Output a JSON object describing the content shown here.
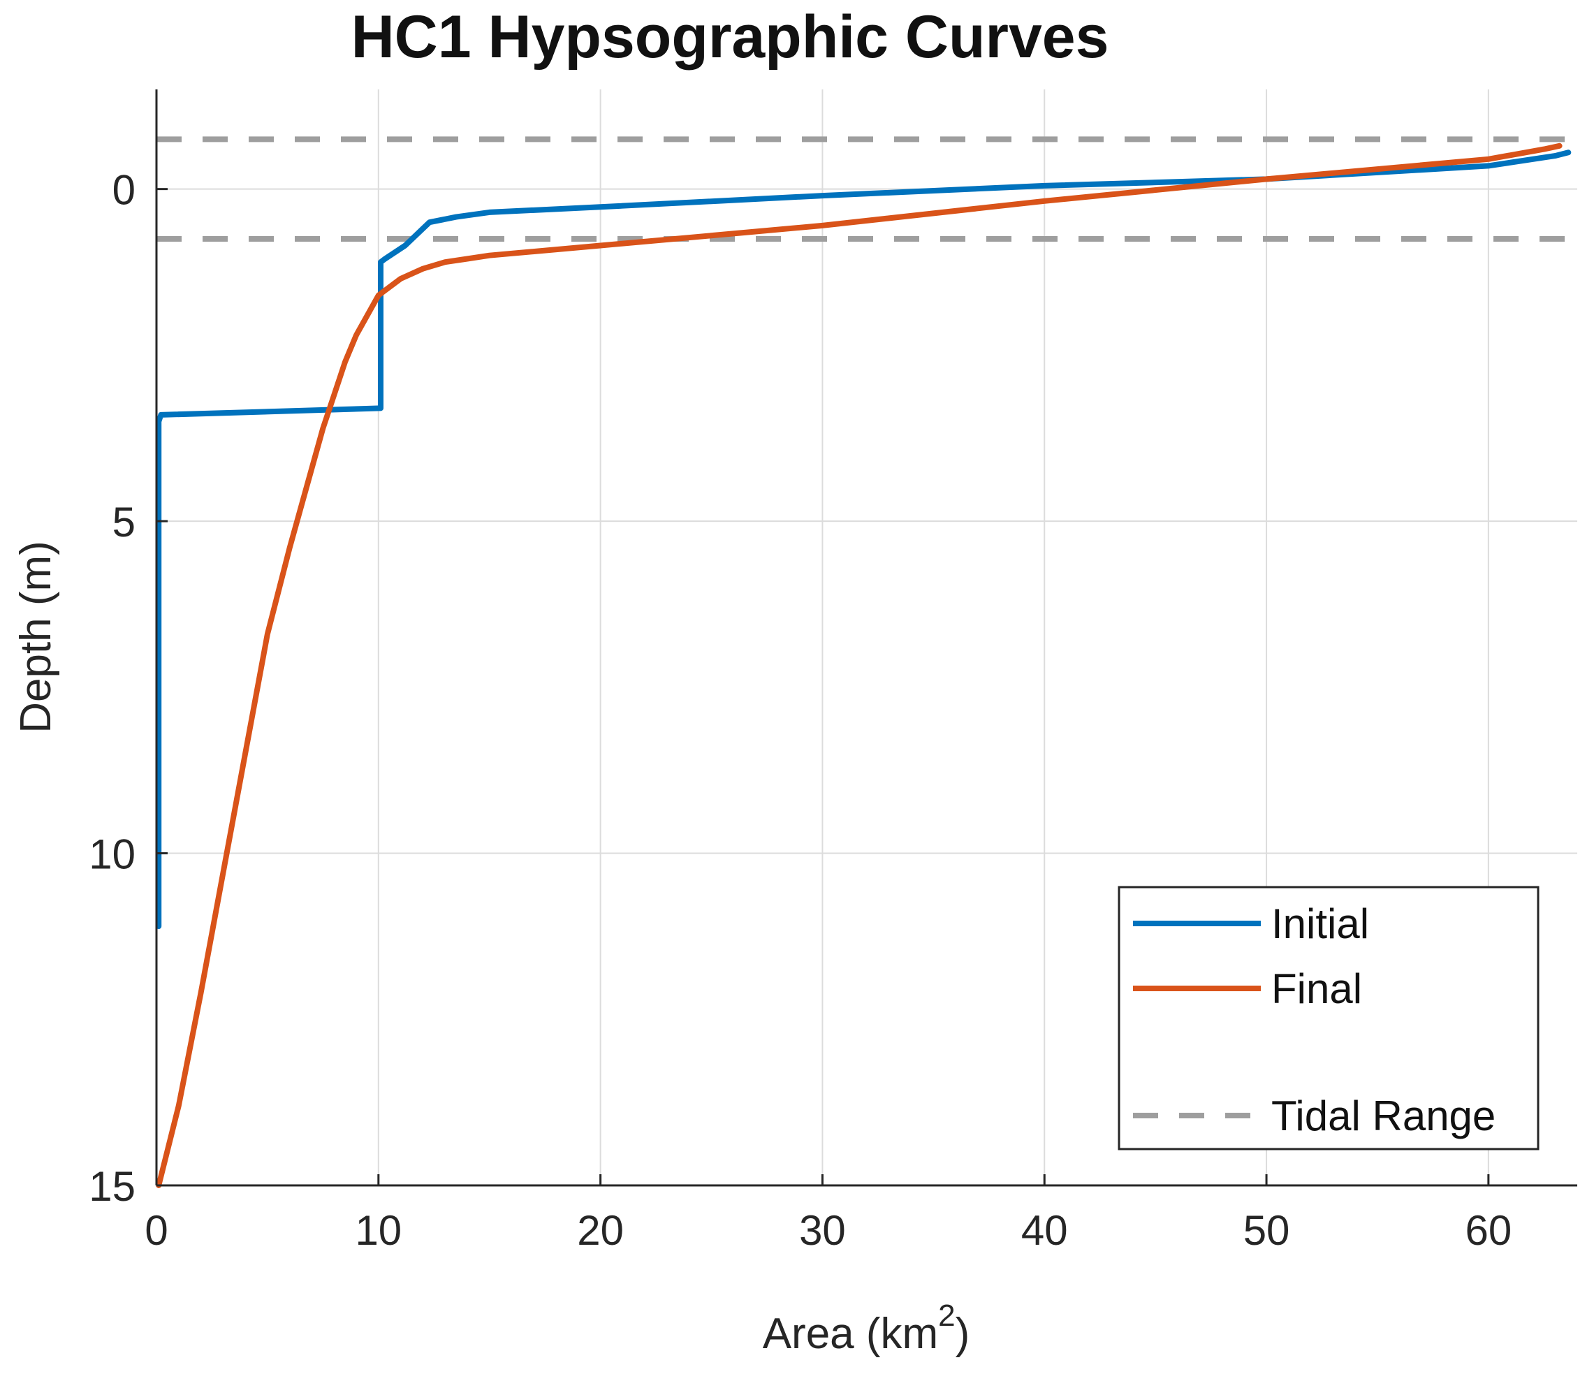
{
  "chart_data": {
    "type": "line",
    "title": "HC1 Hypsographic Curves",
    "xlabel": "Area (km",
    "xlabel_sup": "2",
    "xlabel_end": ")",
    "ylabel": "Depth (m)",
    "xlim": [
      0,
      64
    ],
    "ylim": [
      -1.5,
      15
    ],
    "y_reversed": true,
    "grid": true,
    "x_ticks": [
      0,
      10,
      20,
      30,
      40,
      50,
      60
    ],
    "x_tick_labels": [
      "0",
      "10",
      "20",
      "30",
      "40",
      "50",
      "60"
    ],
    "y_ticks": [
      0,
      5,
      10,
      15
    ],
    "y_tick_labels": [
      "0",
      "5",
      "10",
      "15"
    ],
    "legend_position": "bottom-right",
    "tidal_range": [
      -0.75,
      0.75
    ],
    "series": [
      {
        "name": "Initial",
        "color": "#0072BD",
        "style": "solid",
        "x": [
          0.1,
          0.1,
          0.2,
          10.1,
          10.1,
          10.3,
          11.2,
          12.3,
          13.5,
          15,
          20,
          30,
          40,
          50,
          60,
          63,
          63.6
        ],
        "y": [
          11.1,
          3.5,
          3.4,
          3.3,
          1.1,
          1.05,
          0.85,
          0.5,
          0.42,
          0.35,
          0.27,
          0.1,
          -0.05,
          -0.15,
          -0.35,
          -0.5,
          -0.55
        ]
      },
      {
        "name": "Final",
        "color": "#D95319",
        "style": "solid",
        "x": [
          0.1,
          1,
          2,
          3,
          4,
          5,
          6,
          7,
          7.5,
          8,
          8.5,
          9,
          9.5,
          10,
          11,
          12,
          13,
          14,
          15,
          20,
          30,
          40,
          50,
          60,
          62.5,
          63.2
        ],
        "y": [
          15.0,
          13.8,
          12.1,
          10.3,
          8.5,
          6.7,
          5.4,
          4.2,
          3.6,
          3.1,
          2.6,
          2.2,
          1.9,
          1.6,
          1.35,
          1.2,
          1.1,
          1.05,
          1.0,
          0.85,
          0.55,
          0.18,
          -0.15,
          -0.45,
          -0.6,
          -0.65
        ]
      },
      {
        "name": "Tidal Range",
        "color": "#9e9e9e",
        "style": "dashed",
        "levels": [
          -0.75,
          0.75
        ]
      }
    ]
  }
}
